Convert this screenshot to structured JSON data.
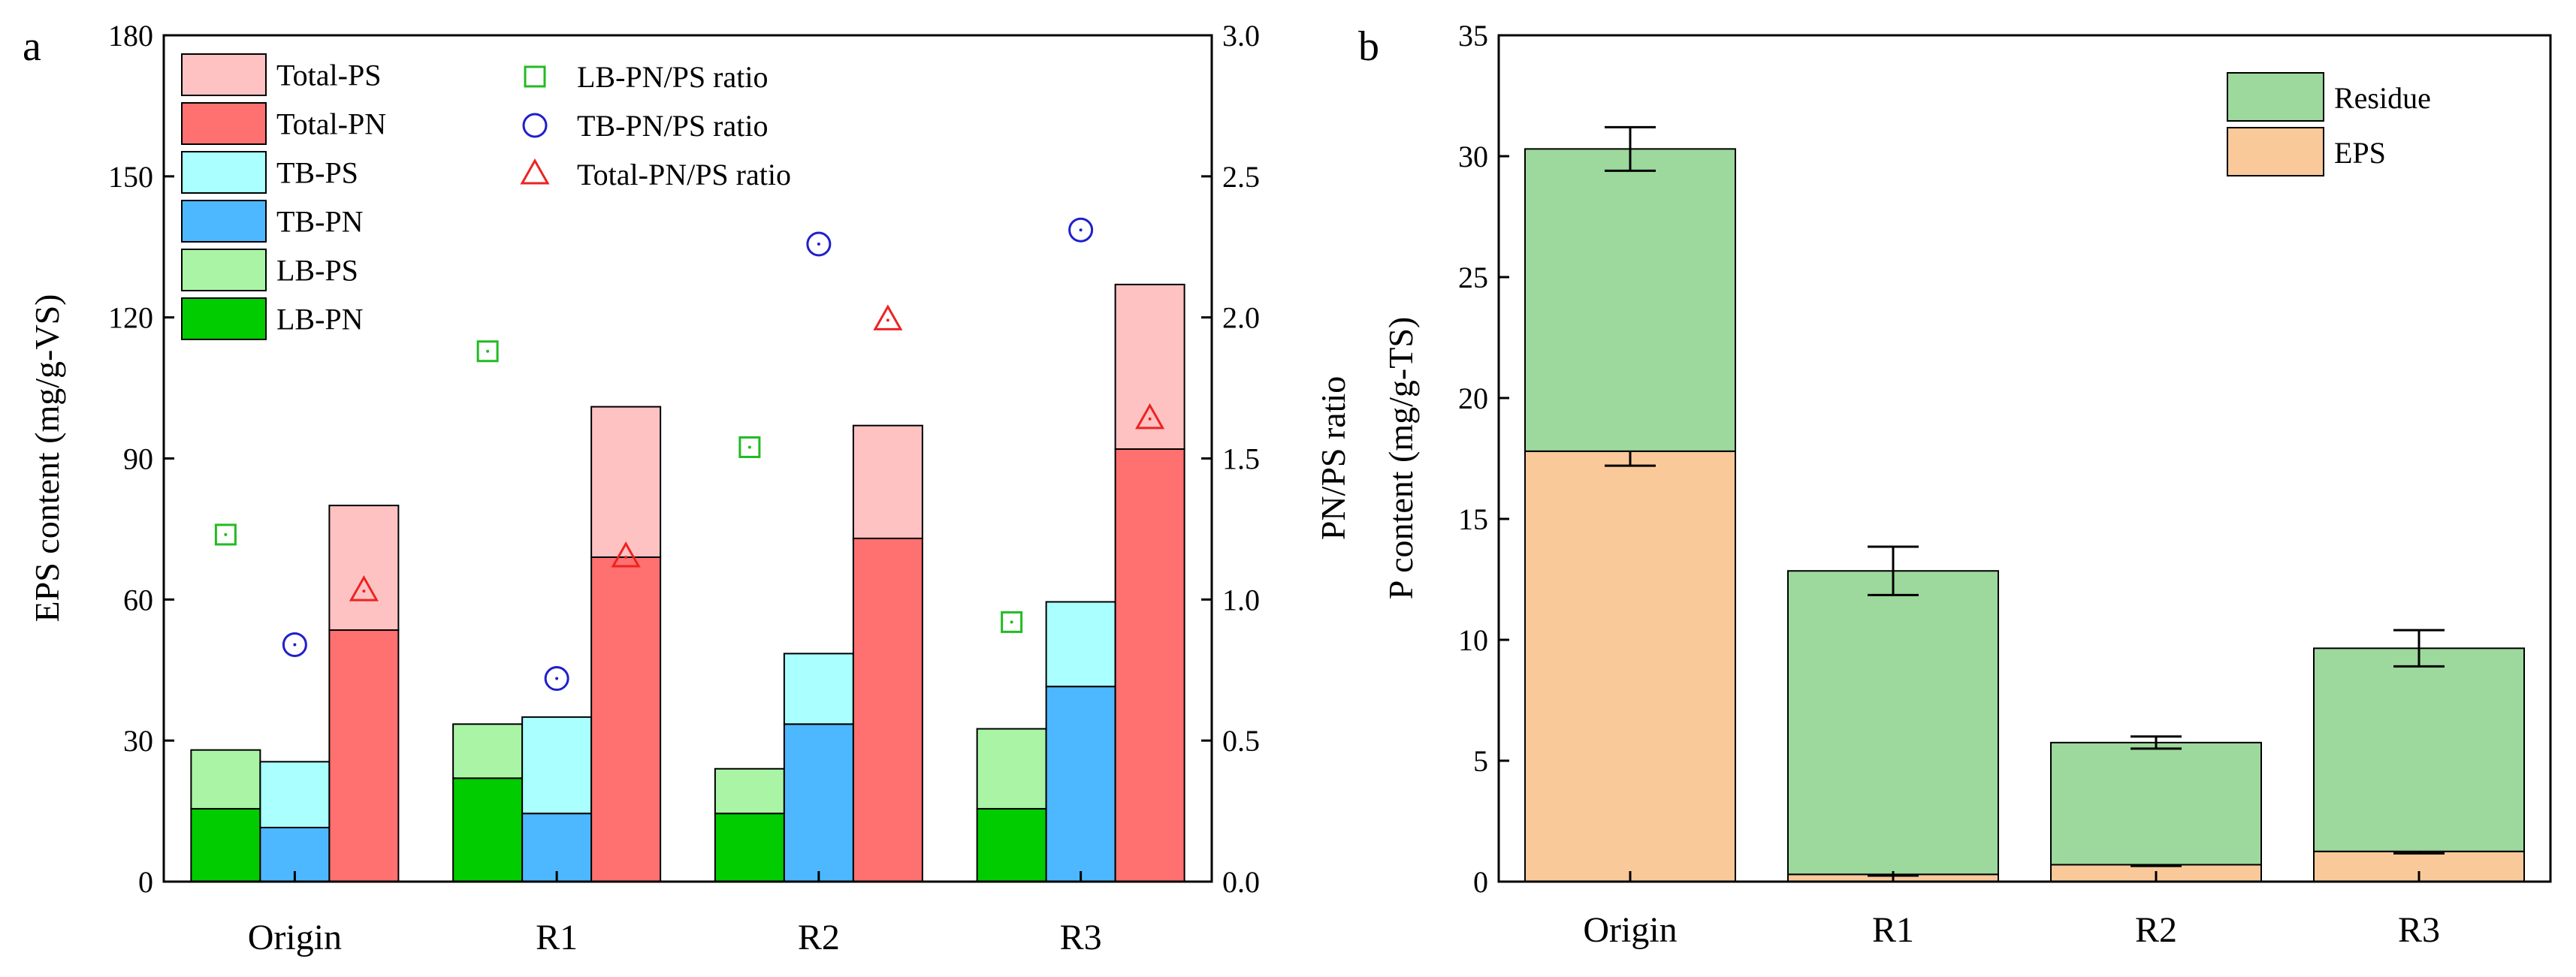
{
  "chart_data": [
    {
      "panel": "a",
      "type": "bar",
      "categories": [
        "Origin",
        "R1",
        "R2",
        "R3"
      ],
      "ylabel": "EPS content (mg/g-VS)",
      "ylabel_right": "PN/PS ratio",
      "ylim": [
        0,
        180
      ],
      "yticks": [
        0,
        30,
        60,
        90,
        120,
        150,
        180
      ],
      "ylim_right": [
        0.0,
        3.0
      ],
      "yticks_right": [
        "0.0",
        "0.5",
        "1.0",
        "1.5",
        "2.0",
        "2.5",
        "3.0"
      ],
      "stacked_groups": [
        {
          "name": "LB",
          "segments": [
            {
              "name": "LB-PN",
              "color": "#00cc00",
              "values": [
                15.5,
                22,
                14.5,
                15.5
              ]
            },
            {
              "name": "LB-PS",
              "color": "#aaf5a5",
              "values": [
                12.5,
                11.5,
                9.5,
                17
              ]
            }
          ]
        },
        {
          "name": "TB",
          "segments": [
            {
              "name": "TB-PN",
              "color": "#4db8ff",
              "values": [
                11.5,
                14.5,
                33.5,
                41.5
              ]
            },
            {
              "name": "TB-PS",
              "color": "#aaffff",
              "values": [
                14,
                20.5,
                15,
                18
              ]
            }
          ]
        },
        {
          "name": "Total",
          "segments": [
            {
              "name": "Total-PN",
              "color": "#ff7070",
              "values": [
                53.5,
                69,
                73,
                92
              ]
            },
            {
              "name": "Total-PS",
              "color": "#ffc2c2",
              "values": [
                26.5,
                32,
                24,
                35
              ]
            }
          ]
        }
      ],
      "ratio_series": [
        {
          "name": "LB-PN/PS ratio",
          "marker": "square",
          "color": "#22bb22",
          "values": [
            1.23,
            1.88,
            1.54,
            0.92
          ]
        },
        {
          "name": "TB-PN/PS ratio",
          "marker": "circle",
          "color": "#1f1fcc",
          "values": [
            0.84,
            0.72,
            2.26,
            2.31
          ]
        },
        {
          "name": "Total-PN/PS ratio",
          "marker": "triangle",
          "color": "#ee2222",
          "values": [
            1.03,
            1.15,
            1.99,
            1.64
          ]
        }
      ],
      "legend_bars": [
        "Total-PS",
        "Total-PN",
        "TB-PS",
        "TB-PN",
        "LB-PS",
        "LB-PN"
      ],
      "legend_position": "top-left"
    },
    {
      "panel": "b",
      "type": "bar",
      "categories": [
        "Origin",
        "R1",
        "R2",
        "R3"
      ],
      "ylabel": "P content (mg/g-TS)",
      "ylim": [
        0,
        35
      ],
      "yticks": [
        0,
        5,
        10,
        15,
        20,
        25,
        30,
        35
      ],
      "series": [
        {
          "name": "EPS",
          "color": "#f9c99a",
          "values": [
            17.8,
            0.3,
            0.7,
            1.25
          ],
          "errors": [
            0.6,
            0.05,
            0.05,
            0.08
          ]
        },
        {
          "name": "Residue",
          "color": "#9dd89d",
          "values": [
            12.5,
            12.55,
            5.05,
            8.4
          ],
          "errors": [
            0.9,
            1.0,
            0.25,
            0.75
          ]
        }
      ],
      "legend": [
        "Residue",
        "EPS"
      ],
      "legend_position": "top-right"
    }
  ]
}
